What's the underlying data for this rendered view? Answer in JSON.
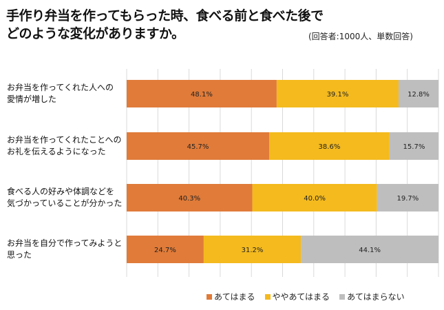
{
  "title_lines": [
    "手作り弁当を作ってもらった時、食べる前と食べた後で",
    "どのような変化がありますか。"
  ],
  "note": "(回答者:1000人、単数回答)",
  "chart_data": {
    "type": "bar",
    "orientation": "horizontal",
    "stacked": "100%",
    "categories": [
      "お弁当を作ってくれた人への\n愛情が増した",
      "お弁当を作ってくれたことへの\nお礼を伝えるようになった",
      "食べる人の好みや体調などを\n気づかっていることが分かった",
      "お弁当を自分で作ってみようと\n思った"
    ],
    "series": [
      {
        "name": "あてはまる",
        "color": "#E07B39",
        "values": [
          48.1,
          45.7,
          40.3,
          24.7
        ]
      },
      {
        "name": "ややあてはまる",
        "color": "#F4BA1E",
        "values": [
          39.1,
          38.6,
          40.0,
          31.2
        ]
      },
      {
        "name": "あてはまらない",
        "color": "#BEBEBE",
        "values": [
          12.8,
          15.7,
          19.7,
          44.1
        ]
      }
    ],
    "xlim": [
      0,
      100
    ],
    "grid": true,
    "legend": "bottom",
    "data_label_suffix": "%"
  }
}
